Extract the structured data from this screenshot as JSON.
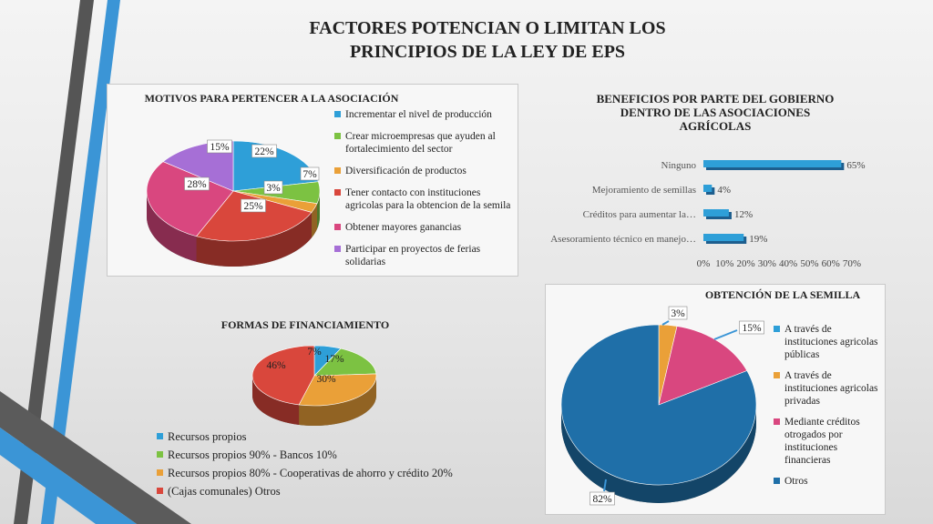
{
  "title_line1": "FACTORES POTENCIAN O LIMITAN LOS",
  "title_line2": "PRINCIPIOS DE LA LEY DE EPS",
  "chart_data": [
    {
      "type": "pie",
      "title": "MOTIVOS PARA PERTENCER A LA ASOCIACIÓN",
      "categories": [
        "Incrementar el nivel de producción",
        "Crear microempresas que ayuden al fortalecimiento del sector",
        "Diversificación de productos",
        "Tener contacto con instituciones agricolas para la obtencion de la semila",
        "Obtener mayores ganancias",
        "Participar en proyectos de ferias solidarias"
      ],
      "values": [
        22,
        7,
        3,
        25,
        28,
        15
      ],
      "labels": [
        "22%",
        "7%",
        "3%",
        "25%",
        "28%",
        "15%"
      ],
      "colors": [
        "#2e9fd8",
        "#7cc242",
        "#eaa038",
        "#d9473c",
        "#d9477f",
        "#a66fd6"
      ],
      "legend_position": "right"
    },
    {
      "type": "bar",
      "orientation": "horizontal",
      "title": "BENEFICIOS POR PARTE DEL GOBIERNO DENTRO DE LAS ASOCIACIONES AGRÍCOLAS",
      "title_lines": [
        "BENEFICIOS POR PARTE DEL GOBIERNO",
        "DENTRO DE LAS ASOCIACIONES",
        "AGRÍCOLAS"
      ],
      "categories": [
        "Ninguno",
        "Mejoramiento de semillas",
        "Créditos para aumentar la…",
        "Asesoramiento técnico en manejo…"
      ],
      "values": [
        65,
        4,
        12,
        19
      ],
      "labels": [
        "65%",
        "4%",
        "12%",
        "19%"
      ],
      "xlim": [
        0,
        70
      ],
      "ticks": [
        "0%",
        "10%",
        "20%",
        "30%",
        "40%",
        "50%",
        "60%",
        "70%"
      ],
      "color": "#2e9fd8"
    },
    {
      "type": "pie",
      "title": "FORMAS DE FINANCIAMIENTO",
      "categories": [
        "Recursos propios",
        "Recursos propios 90% - Bancos 10%",
        "Recursos propios 80% - Cooperativas de ahorro y crédito 20%",
        "(Cajas comunales) Otros"
      ],
      "values": [
        7,
        17,
        30,
        46
      ],
      "labels": [
        "7%",
        "17%",
        "30%",
        "46%"
      ],
      "colors": [
        "#2e9fd8",
        "#7cc242",
        "#eaa038",
        "#d9473c"
      ],
      "legend_position": "bottom"
    },
    {
      "type": "pie",
      "title": "OBTENCIÓN DE LA SEMILLA",
      "categories": [
        "A través de instituciones agricolas públicas",
        "A través de instituciones agricolas privadas",
        "Mediante créditos otrogados por instituciones financieras",
        "Otros"
      ],
      "values": [
        0,
        3,
        15,
        82
      ],
      "labels": [
        "",
        "3%",
        "15%",
        "82%"
      ],
      "colors": [
        "#2e9fd8",
        "#eaa038",
        "#d9477f",
        "#1f6fa8"
      ],
      "legend_position": "right"
    }
  ]
}
